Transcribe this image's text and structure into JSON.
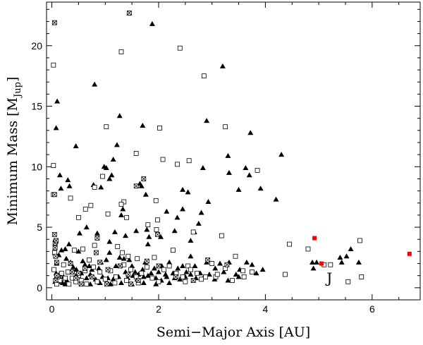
{
  "chart_data": {
    "type": "scatter",
    "xlabel": "Semi−Major Axis [AU]",
    "ylabel_main": "Minimum Mass [M",
    "ylabel_sub": "Jup",
    "ylabel_close": "]",
    "xlim": [
      -0.1,
      6.9
    ],
    "ylim": [
      -1,
      23.6
    ],
    "xticks": [
      0,
      2,
      4,
      6
    ],
    "yticks": [
      0,
      5,
      10,
      15,
      20
    ],
    "grid": false,
    "legend": "none",
    "annotations": [
      {
        "text": "J",
        "x": 5.2,
        "y": 0.8
      }
    ],
    "series": [
      {
        "marker": "filled-triangle",
        "color": "#000000",
        "points": [
          [
            1.45,
            22.7
          ],
          [
            1.88,
            21.8
          ],
          [
            3.2,
            18.3
          ],
          [
            0.45,
            11.7
          ],
          [
            0.1,
            15.4
          ],
          [
            0.08,
            13.2
          ],
          [
            1.27,
            14.2
          ],
          [
            1.7,
            13.4
          ],
          [
            0.8,
            16.8
          ],
          [
            2.9,
            13.8
          ],
          [
            3.72,
            12.8
          ],
          [
            4.3,
            11
          ],
          [
            0.15,
            9.3
          ],
          [
            0.17,
            8.2
          ],
          [
            0.3,
            8.9
          ],
          [
            0.33,
            8.4
          ],
          [
            0.78,
            8.5
          ],
          [
            0.92,
            8.3
          ],
          [
            1.08,
            9
          ],
          [
            1.15,
            10.6
          ],
          [
            1.22,
            11.8
          ],
          [
            1.12,
            9.3
          ],
          [
            0.98,
            10
          ],
          [
            1.02,
            9.9
          ],
          [
            1.65,
            8.6
          ],
          [
            1.68,
            8.4
          ],
          [
            1.76,
            7.7
          ],
          [
            2.15,
            6.3
          ],
          [
            2.45,
            6.5
          ],
          [
            2.55,
            7.9
          ],
          [
            2.83,
            9.9
          ],
          [
            2.93,
            7.1
          ],
          [
            3.3,
            10.9
          ],
          [
            3.32,
            9.5
          ],
          [
            3.5,
            8.1
          ],
          [
            3.63,
            9.9
          ],
          [
            3.7,
            9.3
          ],
          [
            3.91,
            8.2
          ],
          [
            4.2,
            7.3
          ],
          [
            2.45,
            8.1
          ],
          [
            2.35,
            5.8
          ],
          [
            2.8,
            6.2
          ],
          [
            2.75,
            5.3
          ],
          [
            2.6,
            3.9
          ],
          [
            2.67,
            4.6
          ],
          [
            2.3,
            4.7
          ],
          [
            2.04,
            4.2
          ],
          [
            1.33,
            6.5
          ],
          [
            1.38,
            4.3
          ],
          [
            1.58,
            4.7
          ],
          [
            1.78,
            4.8
          ],
          [
            1.82,
            4.2
          ],
          [
            1.8,
            3.6
          ],
          [
            1.18,
            4.6
          ],
          [
            1.08,
            3.8
          ],
          [
            1.3,
            6
          ],
          [
            0.85,
            4.5
          ],
          [
            0.65,
            5
          ],
          [
            0.52,
            4.5
          ],
          [
            0.32,
            3.6
          ],
          [
            0.27,
            2.4
          ],
          [
            0.25,
            3.2
          ],
          [
            0.18,
            3.1
          ],
          [
            0.13,
            2.7
          ],
          [
            0.35,
            2.1
          ],
          [
            0.4,
            1.7
          ],
          [
            0.46,
            1.5
          ],
          [
            0.5,
            3
          ],
          [
            0.58,
            2.2
          ],
          [
            0.62,
            1.9
          ],
          [
            0.7,
            1.8
          ],
          [
            0.75,
            1.5
          ],
          [
            0.88,
            1.6
          ],
          [
            0.92,
            2.1
          ],
          [
            1.02,
            2.3
          ],
          [
            1.08,
            2.9
          ],
          [
            1.2,
            1.8
          ],
          [
            1.27,
            2.5
          ],
          [
            1.35,
            2.4
          ],
          [
            1.45,
            2.3
          ],
          [
            1.5,
            1.8
          ],
          [
            1.56,
            1.3
          ],
          [
            1.62,
            1.1
          ],
          [
            1.7,
            1.5
          ],
          [
            1.75,
            2.1
          ],
          [
            1.86,
            1.2
          ],
          [
            1.92,
            1.6
          ],
          [
            2,
            1.3
          ],
          [
            2.06,
            1.8
          ],
          [
            2.13,
            1.1
          ],
          [
            2.2,
            2.1
          ],
          [
            2.27,
            1.2
          ],
          [
            2.36,
            1.6
          ],
          [
            2.45,
            1.8
          ],
          [
            2.52,
            1.3
          ],
          [
            2.6,
            2.6
          ],
          [
            2.68,
            1.8
          ],
          [
            2.78,
            1.2
          ],
          [
            2.9,
            2.1
          ],
          [
            2.95,
            1.1
          ],
          [
            3.06,
            1.6
          ],
          [
            3.15,
            2
          ],
          [
            3.22,
            1.3
          ],
          [
            3.32,
            2.1
          ],
          [
            3.45,
            1.1
          ],
          [
            3.52,
            1.5
          ],
          [
            3.65,
            2.1
          ],
          [
            3.75,
            1.9
          ],
          [
            3.83,
            1.2
          ],
          [
            3.95,
            1.5
          ],
          [
            4.88,
            2.1
          ],
          [
            4.9,
            1.6
          ],
          [
            4.96,
            2.1
          ],
          [
            5.4,
            2.5
          ],
          [
            5.43,
            2.1
          ],
          [
            5.52,
            2.6
          ],
          [
            5.6,
            3.2
          ],
          [
            5.75,
            2.1
          ],
          [
            0.45,
            1
          ],
          [
            0.55,
            1.2
          ],
          [
            0.65,
            0.8
          ],
          [
            0.72,
            1.1
          ],
          [
            0.82,
            0.7
          ],
          [
            0.95,
            0.9
          ],
          [
            1.05,
            0.8
          ],
          [
            1.15,
            0.7
          ],
          [
            1.25,
            0.9
          ],
          [
            1.38,
            1.3
          ],
          [
            1.42,
            0.8
          ],
          [
            1.52,
            1
          ],
          [
            1.6,
            0.7
          ],
          [
            1.72,
            0.9
          ],
          [
            1.8,
            1
          ],
          [
            1.95,
            0.8
          ],
          [
            2.05,
            0.6
          ],
          [
            2.15,
            0.9
          ],
          [
            2.3,
            0.8
          ],
          [
            2.4,
            0.7
          ],
          [
            2.5,
            0.9
          ],
          [
            2.6,
            1.1
          ],
          [
            2.7,
            0.8
          ],
          [
            2.85,
            0.9
          ],
          [
            3.05,
            0.7
          ],
          [
            3.3,
            0.6
          ],
          [
            3.5,
            0.9
          ],
          [
            0.55,
            0.4
          ],
          [
            0.72,
            0.3
          ],
          [
            0.9,
            0.4
          ],
          [
            1.1,
            0.3
          ],
          [
            1.3,
            0.4
          ],
          [
            1.5,
            0.3
          ],
          [
            1.72,
            0.4
          ],
          [
            1.95,
            0.3
          ],
          [
            2.2,
            0.4
          ],
          [
            0.08,
            1.2
          ],
          [
            0.09,
            2
          ],
          [
            0.1,
            0.9
          ],
          [
            0.12,
            0.5
          ],
          [
            0.14,
            1.1
          ],
          [
            0.16,
            0.7
          ],
          [
            0.2,
            0.4
          ],
          [
            0.22,
            0.9
          ],
          [
            0.25,
            0.3
          ],
          [
            0.28,
            0.6
          ],
          [
            0.06,
            0.5
          ]
        ]
      },
      {
        "marker": "open-square",
        "color": "#000000",
        "points": [
          [
            0.03,
            18.4
          ],
          [
            1.3,
            19.5
          ],
          [
            2.4,
            19.8
          ],
          [
            2.85,
            17.5
          ],
          [
            1.02,
            13.3
          ],
          [
            2.02,
            13.2
          ],
          [
            3.25,
            13.3
          ],
          [
            0.03,
            10.1
          ],
          [
            0.03,
            7.7
          ],
          [
            0.35,
            7.4
          ],
          [
            0.8,
            8.3
          ],
          [
            0.95,
            9.2
          ],
          [
            1.58,
            11.1
          ],
          [
            2.08,
            10.6
          ],
          [
            2.35,
            10.2
          ],
          [
            2.57,
            10.5
          ],
          [
            3.85,
            9.7
          ],
          [
            1.35,
            7.1
          ],
          [
            1.3,
            6.9
          ],
          [
            1.95,
            7.2
          ],
          [
            1.05,
            6.1
          ],
          [
            0.63,
            6.5
          ],
          [
            0.5,
            5.8
          ],
          [
            0.73,
            6.8
          ],
          [
            1.4,
            5.8
          ],
          [
            1.8,
            5.2
          ],
          [
            1.98,
            5.6
          ],
          [
            1.96,
            4.8
          ],
          [
            2.65,
            4.6
          ],
          [
            3.18,
            4.3
          ],
          [
            4.45,
            3.6
          ],
          [
            4.8,
            3.2
          ],
          [
            5.77,
            3.9
          ],
          [
            5.8,
            0.9
          ],
          [
            5.55,
            0.5
          ],
          [
            5.22,
            1.9
          ],
          [
            5.1,
            1.9
          ],
          [
            4.37,
            1.1
          ],
          [
            3.38,
            0.6
          ],
          [
            3.58,
            1.4
          ],
          [
            3.44,
            2.6
          ],
          [
            3.07,
            0.9
          ],
          [
            3.0,
            2
          ],
          [
            2.88,
            0.9
          ],
          [
            2.55,
            1.8
          ],
          [
            2.27,
            3.1
          ],
          [
            1.92,
            2.5
          ],
          [
            1.6,
            2.4
          ],
          [
            1.43,
            2.6
          ],
          [
            1.32,
            2.9
          ],
          [
            1.23,
            3.4
          ],
          [
            0.8,
            3.5
          ],
          [
            0.58,
            3.2
          ],
          [
            0.42,
            3.1
          ],
          [
            0.22,
            1.9
          ],
          [
            0.3,
            1.3
          ],
          [
            0.38,
            0.8
          ],
          [
            0.5,
            1
          ],
          [
            0.62,
            1.4
          ],
          [
            0.7,
            2.3
          ],
          [
            0.78,
            1.7
          ],
          [
            0.9,
            1.3
          ],
          [
            1.0,
            0.7
          ],
          [
            1.1,
            1.4
          ],
          [
            1.2,
            0.9
          ],
          [
            1.35,
            1.9
          ],
          [
            1.48,
            1.5
          ],
          [
            1.58,
            0.9
          ],
          [
            1.68,
            1.2
          ],
          [
            1.78,
            1.7
          ],
          [
            1.88,
            0.8
          ],
          [
            2.1,
            1.5
          ],
          [
            2.2,
            1.8
          ],
          [
            2.33,
            1.2
          ],
          [
            2.45,
            0.9
          ],
          [
            2.6,
            1.5
          ],
          [
            2.72,
            1.2
          ],
          [
            2.8,
            0.7
          ],
          [
            3.1,
            1.1
          ],
          [
            3.25,
            1.6
          ],
          [
            3.6,
            0.9
          ],
          [
            3.75,
            1.3
          ],
          [
            0.15,
            0.6
          ],
          [
            0.18,
            1.2
          ],
          [
            0.25,
            0.8
          ],
          [
            0.32,
            0.3
          ],
          [
            0.45,
            0.5
          ],
          [
            0.55,
            0.6
          ],
          [
            0.65,
            0.3
          ],
          [
            0.85,
            0.5
          ],
          [
            1.18,
            0.4
          ],
          [
            1.4,
            0.6
          ],
          [
            1.62,
            0.4
          ],
          [
            2.0,
            0.5
          ],
          [
            2.5,
            0.5
          ],
          [
            0.05,
            2.9
          ],
          [
            0.07,
            3.8
          ],
          [
            0.04,
            1.5
          ],
          [
            0.09,
            0.3
          ],
          [
            0.11,
            0.9
          ]
        ]
      },
      {
        "marker": "crossed-square",
        "color": "#000000",
        "points": [
          [
            0.05,
            21.9
          ],
          [
            1.45,
            22.7
          ],
          [
            1.72,
            9
          ],
          [
            1.58,
            8.4
          ],
          [
            0.05,
            7.7
          ],
          [
            0.83,
            2.9
          ],
          [
            0.85,
            4.1
          ],
          [
            1.98,
            4.4
          ],
          [
            0.05,
            4.4
          ],
          [
            0.06,
            3.7
          ],
          [
            0.08,
            3.9
          ],
          [
            0.06,
            3.3
          ],
          [
            0.07,
            2.6
          ],
          [
            0.09,
            2.1
          ],
          [
            0.35,
            2
          ],
          [
            0.38,
            1.3
          ],
          [
            0.45,
            0.8
          ],
          [
            0.5,
            1.2
          ],
          [
            0.62,
            1.6
          ],
          [
            0.75,
            0.9
          ],
          [
            0.9,
            2.1
          ],
          [
            1.05,
            1.5
          ],
          [
            1.28,
            1.8
          ],
          [
            1.43,
            1.1
          ],
          [
            1.62,
            0.6
          ],
          [
            1.78,
            2.2
          ],
          [
            2.0,
            1.8
          ],
          [
            2.32,
            0.9
          ],
          [
            2.65,
            0.6
          ],
          [
            2.92,
            2.3
          ],
          [
            3.28,
            1.9
          ],
          [
            1.48,
            0.3
          ],
          [
            1.03,
            0.3
          ],
          [
            0.55,
            0.3
          ],
          [
            0.07,
            0.6
          ],
          [
            0.09,
            1
          ]
        ]
      },
      {
        "marker": "filled-square",
        "color": "#ff0000",
        "points": [
          [
            4.92,
            4.1
          ],
          [
            5.05,
            2.0
          ],
          [
            6.7,
            2.8
          ]
        ]
      }
    ]
  }
}
